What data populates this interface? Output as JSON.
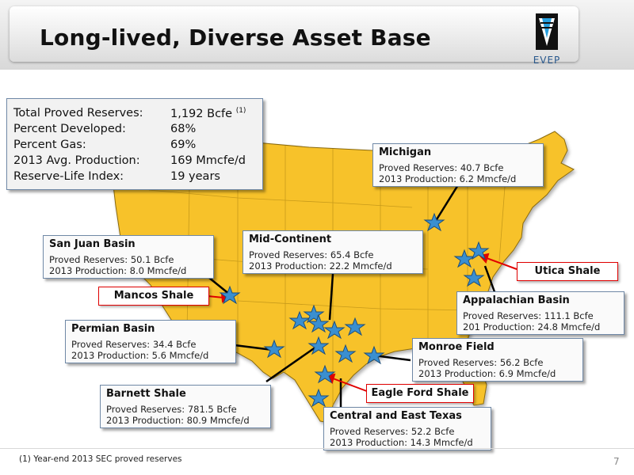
{
  "header": {
    "title": "Long-lived, Diverse Asset Base",
    "logo_text": "EVEP"
  },
  "stats": [
    {
      "label": "Total Proved Reserves:",
      "value": "1,192 Bcfe",
      "note": "(1)"
    },
    {
      "label": "Percent Developed:",
      "value": "68%"
    },
    {
      "label": "Percent Gas:",
      "value": "69%"
    },
    {
      "label": "2013 Avg. Production:",
      "value": "169  Mmcfe/d"
    },
    {
      "label": "Reserve-Life Index:",
      "value": "19 years"
    }
  ],
  "assets": {
    "michigan": {
      "name": "Michigan",
      "reserves": "Proved Reserves: 40.7 Bcfe",
      "production": "2013 Production: 6.2 Mmcfe/d"
    },
    "san_juan": {
      "name": "San Juan Basin",
      "reserves": "Proved Reserves: 50.1 Bcfe",
      "production": "2013 Production: 8.0 Mmcfe/d"
    },
    "mid_continent": {
      "name": "Mid-Continent",
      "reserves": "Proved Reserves: 65.4 Bcfe",
      "production": "2013 Production: 22.2 Mmcfe/d"
    },
    "appalachian": {
      "name": "Appalachian Basin",
      "reserves": "Proved Reserves: 111.1 Bcfe",
      "production": "201 Production: 24.8 Mmcfe/d"
    },
    "permian": {
      "name": "Permian Basin",
      "reserves": "Proved Reserves: 34.4 Bcfe",
      "production": "2013 Production: 5.6 Mmcfe/d"
    },
    "monroe": {
      "name": "Monroe Field",
      "reserves": "Proved Reserves: 56.2 Bcfe",
      "production": "2013 Production: 6.9 Mmcfe/d"
    },
    "barnett": {
      "name": "Barnett Shale",
      "reserves": "Proved Reserves: 781.5 Bcfe",
      "production": "2013 Production: 80.9 Mmcfe/d"
    },
    "central_east_texas": {
      "name": "Central and East Texas",
      "reserves": "Proved Reserves: 52.2 Bcfe",
      "production": "2013 Production: 14.3 Mmcfe/d"
    }
  },
  "callouts": {
    "mancos": "Mancos Shale",
    "utica": "Utica Shale",
    "eagle_ford": "Eagle Ford Shale"
  },
  "footer": {
    "footnote": "(1) Year-end 2013 SEC proved reserves",
    "page_number": "7"
  },
  "colors": {
    "map_fill": "#f7c22a",
    "map_border": "#8a6a10",
    "star": "#3a8fd0",
    "callout_border": "#e00000"
  }
}
